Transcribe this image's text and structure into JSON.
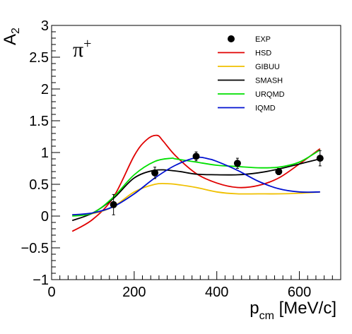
{
  "chart_data": {
    "type": "line",
    "title": "",
    "annotation": {
      "particle": "π",
      "charge": "+"
    },
    "xlabel": {
      "main": "p",
      "sub": "cm",
      "unit": " [MeV/c]"
    },
    "ylabel": {
      "main": "A",
      "sub": "2"
    },
    "xlim": [
      0,
      700
    ],
    "ylim": [
      -1,
      3
    ],
    "xticks": [
      0,
      200,
      400,
      600
    ],
    "xtick_labels": [
      "0",
      "200",
      "400",
      "600"
    ],
    "yticks": [
      -1,
      -0.5,
      0,
      0.5,
      1,
      1.5,
      2,
      2.5,
      3
    ],
    "ytick_labels": [
      "−1",
      "−0.5",
      "0",
      "0.5",
      "1",
      "1.5",
      "2",
      "2.5",
      "3"
    ],
    "grid": false,
    "legend_position": "top-right",
    "experiment": {
      "name": "EXP",
      "color": "#000000",
      "points": [
        {
          "x": 150,
          "y": 0.18,
          "err": 0.16
        },
        {
          "x": 250,
          "y": 0.68,
          "err": 0.09
        },
        {
          "x": 350,
          "y": 0.94,
          "err": 0.07
        },
        {
          "x": 450,
          "y": 0.83,
          "err": 0.08
        },
        {
          "x": 550,
          "y": 0.7,
          "err": 0.05
        },
        {
          "x": 650,
          "y": 0.91,
          "err": 0.12
        }
      ]
    },
    "series": [
      {
        "name": "HSD",
        "color": "#e00000",
        "x": [
          50,
          100,
          150,
          200,
          230,
          255,
          270,
          300,
          350,
          400,
          450,
          500,
          550,
          600,
          650
        ],
        "y": [
          -0.24,
          -0.05,
          0.3,
          0.95,
          1.2,
          1.27,
          1.18,
          0.95,
          0.67,
          0.52,
          0.45,
          0.48,
          0.6,
          0.82,
          1.06
        ]
      },
      {
        "name": "GIBUU",
        "color": "#f0c000",
        "x": [
          50,
          100,
          150,
          200,
          250,
          280,
          300,
          350,
          400,
          450,
          500,
          550,
          600,
          650
        ],
        "y": [
          0.02,
          0.04,
          0.15,
          0.38,
          0.5,
          0.51,
          0.5,
          0.45,
          0.38,
          0.35,
          0.35,
          0.35,
          0.36,
          0.38
        ]
      },
      {
        "name": "SMASH",
        "color": "#000000",
        "x": [
          50,
          100,
          150,
          200,
          250,
          300,
          350,
          400,
          450,
          500,
          550,
          600,
          650
        ],
        "y": [
          -0.07,
          0.05,
          0.28,
          0.6,
          0.72,
          0.71,
          0.66,
          0.65,
          0.65,
          0.68,
          0.74,
          0.82,
          0.9
        ]
      },
      {
        "name": "URQMD",
        "color": "#00e000",
        "x": [
          50,
          100,
          150,
          200,
          250,
          290,
          300,
          350,
          400,
          450,
          500,
          550,
          600,
          650
        ],
        "y": [
          0.0,
          0.05,
          0.3,
          0.65,
          0.86,
          0.91,
          0.9,
          0.85,
          0.8,
          0.78,
          0.76,
          0.77,
          0.85,
          1.04
        ]
      },
      {
        "name": "IQMD",
        "color": "#0010d0",
        "x": [
          50,
          100,
          150,
          200,
          250,
          300,
          350,
          380,
          400,
          450,
          500,
          550,
          600,
          650
        ],
        "y": [
          0.02,
          0.05,
          0.15,
          0.35,
          0.6,
          0.8,
          0.92,
          0.9,
          0.86,
          0.72,
          0.55,
          0.43,
          0.38,
          0.38
        ]
      }
    ]
  }
}
